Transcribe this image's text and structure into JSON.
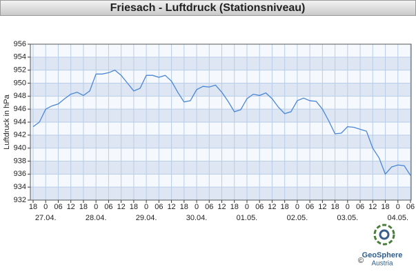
{
  "chart_data": {
    "type": "line",
    "title": "Friesach - Luftdruck (Stationsniveau)",
    "y_label": "Luftdruck in hPa",
    "categories": [
      "18",
      null,
      "0",
      null,
      "06",
      null,
      "12",
      null,
      "18",
      null,
      "0",
      null,
      "06",
      null,
      "12",
      null,
      "18",
      null,
      "0",
      null,
      "06",
      null,
      "12",
      null,
      "18",
      null,
      "0",
      null,
      "06",
      null,
      "12",
      null,
      "18",
      null,
      "0",
      null,
      "06",
      null,
      "12",
      null,
      "18",
      null,
      "0",
      null,
      "06",
      null,
      "12",
      null,
      "18",
      null,
      "0",
      null,
      "06",
      null,
      "12",
      null,
      "18",
      null,
      "0",
      null,
      "06"
    ],
    "date_labels": [
      null,
      null,
      "27.04.",
      null,
      null,
      null,
      null,
      null,
      null,
      null,
      "28.04.",
      null,
      null,
      null,
      null,
      null,
      null,
      null,
      "29.04.",
      null,
      null,
      null,
      null,
      null,
      null,
      null,
      "30.04.",
      null,
      null,
      null,
      null,
      null,
      null,
      null,
      "01.05.",
      null,
      null,
      null,
      null,
      null,
      null,
      null,
      "02.05.",
      null,
      null,
      null,
      null,
      null,
      null,
      null,
      "03.05.",
      null,
      null,
      null,
      null,
      null,
      null,
      null,
      "04.05.",
      null,
      null
    ],
    "series": [
      {
        "name": "Luftdruck",
        "color": "#4a86d8",
        "values": [
          943.3,
          944.0,
          946.0,
          946.5,
          946.8,
          947.6,
          948.3,
          948.6,
          948.1,
          948.8,
          951.4,
          951.4,
          951.6,
          952.0,
          951.2,
          950.0,
          948.8,
          949.2,
          951.2,
          951.2,
          950.9,
          951.2,
          950.3,
          948.6,
          947.1,
          947.3,
          949.0,
          949.5,
          949.4,
          949.7,
          948.6,
          947.2,
          945.6,
          945.9,
          947.6,
          948.3,
          948.1,
          948.5,
          947.6,
          946.3,
          945.3,
          945.6,
          947.3,
          947.7,
          947.3,
          947.2,
          946.0,
          944.2,
          942.2,
          942.3,
          943.3,
          943.2,
          942.9,
          942.6,
          940.0,
          938.5,
          936.0,
          937.1,
          937.4,
          937.3,
          935.8
        ]
      }
    ],
    "ylim": [
      932,
      956
    ],
    "yticks": [
      932,
      934,
      936,
      938,
      940,
      942,
      944,
      946,
      948,
      950,
      952,
      954,
      956
    ],
    "grid": true,
    "logo": {
      "name": "GeoSphere",
      "sub": "Austria",
      "copyright": "©"
    }
  }
}
